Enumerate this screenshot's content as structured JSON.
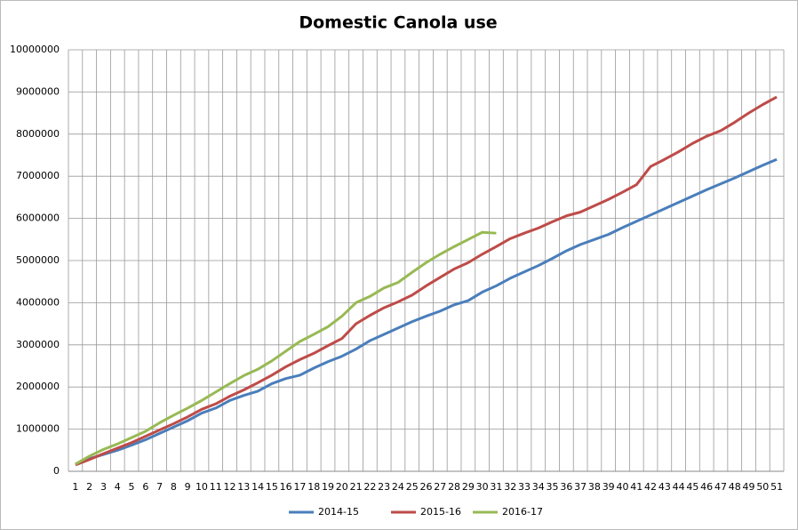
{
  "chart_data": {
    "type": "line",
    "title": "Domestic Canola use",
    "categories": [
      "1",
      "2",
      "3",
      "4",
      "5",
      "6",
      "7",
      "8",
      "9",
      "10",
      "11",
      "12",
      "13",
      "14",
      "15",
      "16",
      "17",
      "18",
      "19",
      "20",
      "21",
      "22",
      "23",
      "24",
      "25",
      "26",
      "27",
      "28",
      "29",
      "30",
      "31",
      "32",
      "33",
      "34",
      "35",
      "36",
      "37",
      "38",
      "39",
      "40",
      "41",
      "42",
      "43",
      "44",
      "45",
      "46",
      "47",
      "48",
      "49",
      "50",
      "51"
    ],
    "series": [
      {
        "name": "2014-15",
        "color": "#4a7ebb",
        "values": [
          170000,
          300000,
          400000,
          500000,
          620000,
          750000,
          900000,
          1050000,
          1200000,
          1380000,
          1500000,
          1680000,
          1800000,
          1900000,
          2080000,
          2200000,
          2280000,
          2450000,
          2600000,
          2730000,
          2900000,
          3100000,
          3250000,
          3400000,
          3550000,
          3680000,
          3800000,
          3950000,
          4050000,
          4250000,
          4400000,
          4580000,
          4730000,
          4880000,
          5050000,
          5230000,
          5380000,
          5500000,
          5620000,
          5780000,
          5930000,
          6080000,
          6230000,
          6380000,
          6530000,
          6680000,
          6820000,
          6960000,
          7110000,
          7260000,
          7400000
        ]
      },
      {
        "name": "2015-16",
        "color": "#be4b48",
        "values": [
          150000,
          280000,
          420000,
          550000,
          680000,
          830000,
          980000,
          1130000,
          1290000,
          1470000,
          1600000,
          1780000,
          1930000,
          2100000,
          2280000,
          2480000,
          2650000,
          2800000,
          2980000,
          3150000,
          3500000,
          3700000,
          3880000,
          4020000,
          4180000,
          4400000,
          4600000,
          4800000,
          4950000,
          5150000,
          5330000,
          5520000,
          5650000,
          5770000,
          5920000,
          6060000,
          6150000,
          6300000,
          6450000,
          6620000,
          6800000,
          7230000,
          7400000,
          7580000,
          7780000,
          7950000,
          8080000,
          8280000,
          8500000,
          8700000,
          8880000
        ]
      },
      {
        "name": "2016-17",
        "color": "#98b954",
        "values": [
          170000,
          360000,
          520000,
          650000,
          800000,
          950000,
          1150000,
          1330000,
          1500000,
          1680000,
          1880000,
          2080000,
          2270000,
          2420000,
          2620000,
          2850000,
          3080000,
          3250000,
          3430000,
          3680000,
          4000000,
          4150000,
          4350000,
          4480000,
          4720000,
          4950000,
          5150000,
          5330000,
          5500000,
          5670000,
          5650000,
          null,
          null,
          null,
          null,
          null,
          null,
          null,
          null,
          null,
          null,
          null,
          null,
          null,
          null,
          null,
          null,
          null,
          null,
          null,
          null
        ]
      }
    ],
    "ylim": [
      0,
      10000000
    ],
    "yticks": [
      0,
      1000000,
      2000000,
      3000000,
      4000000,
      5000000,
      6000000,
      7000000,
      8000000,
      9000000,
      10000000
    ],
    "grid": true,
    "legend": "bottom"
  }
}
